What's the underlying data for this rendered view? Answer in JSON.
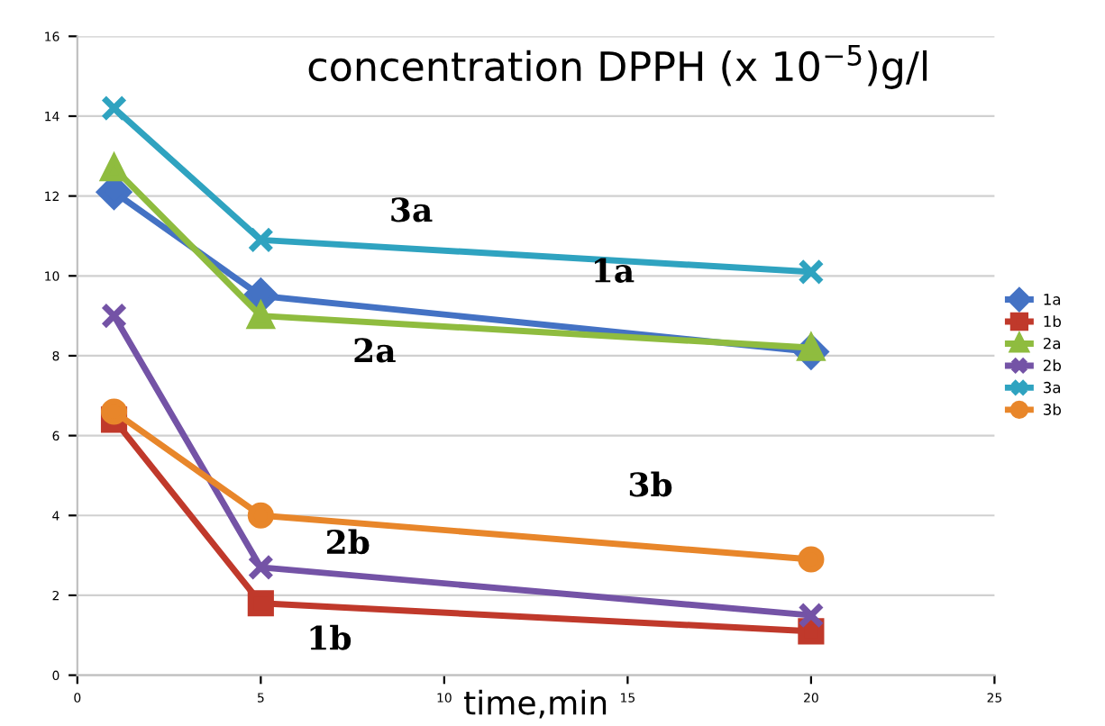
{
  "chart_data": {
    "type": "line",
    "title": "concentration DPPH (x 10$^{−5}$)g/l",
    "xlabel": "time,min",
    "xlim": [
      0,
      25
    ],
    "xticks": [
      0,
      5,
      10,
      15,
      20,
      25
    ],
    "ylim": [
      0,
      16
    ],
    "yticks": [
      0,
      2,
      4,
      6,
      8,
      10,
      12,
      14,
      16
    ],
    "grid": "y",
    "legend": "right",
    "x": [
      1,
      5,
      20
    ],
    "series": [
      {
        "name": "1a",
        "color": "#4472c4",
        "marker": "diamond",
        "values": [
          12.1,
          9.5,
          8.1
        ]
      },
      {
        "name": "1b",
        "color": "#c0392b",
        "marker": "square",
        "values": [
          6.4,
          1.8,
          1.1
        ]
      },
      {
        "name": "2a",
        "color": "#8fbc3f",
        "marker": "triangle",
        "values": [
          12.7,
          9.0,
          8.2
        ]
      },
      {
        "name": "2b",
        "color": "#7453a6",
        "marker": "cross",
        "values": [
          9.0,
          2.7,
          1.5
        ]
      },
      {
        "name": "3a",
        "color": "#2fa3c0",
        "marker": "cross",
        "values": [
          14.2,
          10.9,
          10.1
        ]
      },
      {
        "name": "3b",
        "color": "#e8862a",
        "marker": "circle",
        "values": [
          6.6,
          4.0,
          2.9
        ]
      }
    ],
    "annotations": [
      "3a",
      "1a",
      "2a",
      "3b",
      "2b",
      "1b"
    ]
  }
}
